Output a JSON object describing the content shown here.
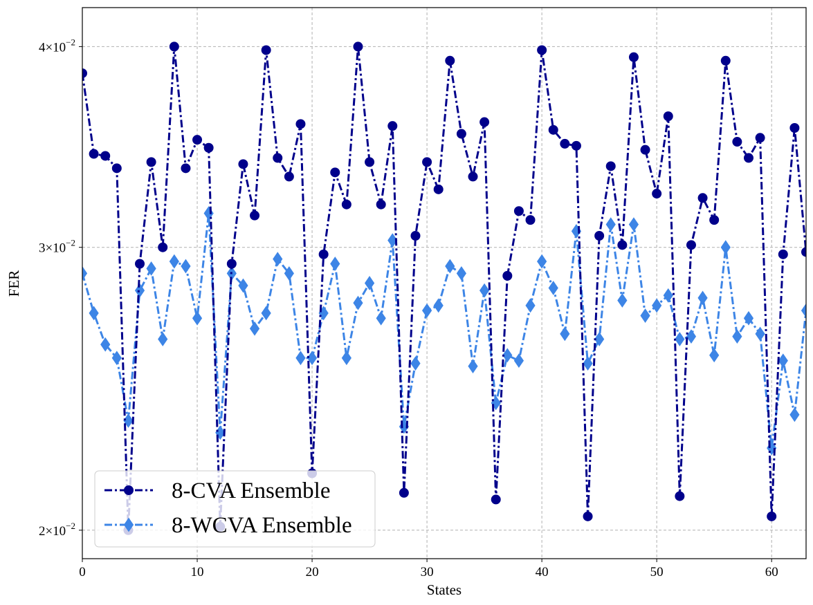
{
  "chart_data": {
    "type": "line",
    "xlabel": "States",
    "ylabel": "FER",
    "xlim": [
      0,
      63
    ],
    "ylim": [
      0.0192,
      0.0423
    ],
    "yscale": "log",
    "grid": true,
    "legend_position": "lower-left",
    "x_ticks": [
      0,
      10,
      20,
      30,
      40,
      50,
      60
    ],
    "x_tick_labels": [
      "0",
      "10",
      "20",
      "30",
      "40",
      "50",
      "60"
    ],
    "y_ticks": [
      0.02,
      0.03,
      0.04
    ],
    "y_tick_labels": [
      {
        "mantissa": "2",
        "times": "×",
        "base": "10",
        "exponent": "−2"
      },
      {
        "mantissa": "3",
        "times": "×",
        "base": "10",
        "exponent": "−2"
      },
      {
        "mantissa": "4",
        "times": "×",
        "base": "10",
        "exponent": "−2"
      }
    ],
    "x": [
      0,
      1,
      2,
      3,
      4,
      5,
      6,
      7,
      8,
      9,
      10,
      11,
      12,
      13,
      14,
      15,
      16,
      17,
      18,
      19,
      20,
      21,
      22,
      23,
      24,
      25,
      26,
      27,
      28,
      29,
      30,
      31,
      32,
      33,
      34,
      35,
      36,
      37,
      38,
      39,
      40,
      41,
      42,
      43,
      44,
      45,
      46,
      47,
      48,
      49,
      50,
      51,
      52,
      53,
      54,
      55,
      56,
      57,
      58,
      59,
      60,
      61,
      62,
      63
    ],
    "series": [
      {
        "name": "8-CVA Ensemble",
        "color": "#00008b",
        "marker": "circle",
        "linestyle": "dashdot",
        "values": [
          0.0385,
          0.0343,
          0.0342,
          0.0336,
          0.02,
          0.0293,
          0.0339,
          0.03,
          0.04,
          0.0336,
          0.035,
          0.0346,
          0.0201,
          0.0293,
          0.0338,
          0.0314,
          0.0398,
          0.0341,
          0.0332,
          0.0358,
          0.0217,
          0.0297,
          0.0334,
          0.0319,
          0.04,
          0.0339,
          0.0319,
          0.0357,
          0.0211,
          0.0305,
          0.0339,
          0.0326,
          0.0392,
          0.0353,
          0.0332,
          0.0359,
          0.0209,
          0.0288,
          0.0316,
          0.0312,
          0.0398,
          0.0355,
          0.0348,
          0.0347,
          0.0204,
          0.0305,
          0.0337,
          0.0301,
          0.0394,
          0.0345,
          0.0324,
          0.0362,
          0.021,
          0.0301,
          0.0322,
          0.0312,
          0.0392,
          0.0349,
          0.0341,
          0.0351,
          0.0204,
          0.0297,
          0.0356,
          0.0298
        ]
      },
      {
        "name": "8-WCVA Ensemble",
        "color": "#3d85e6",
        "marker": "diamond",
        "linestyle": "dashdot",
        "values": [
          0.0289,
          0.0273,
          0.0261,
          0.0256,
          0.0234,
          0.0282,
          0.0291,
          0.0263,
          0.0294,
          0.0292,
          0.0271,
          0.0315,
          0.023,
          0.0289,
          0.0284,
          0.0267,
          0.0273,
          0.0295,
          0.0289,
          0.0256,
          0.0256,
          0.0273,
          0.0293,
          0.0256,
          0.0277,
          0.0285,
          0.0271,
          0.0303,
          0.0232,
          0.0254,
          0.0274,
          0.0276,
          0.0292,
          0.0289,
          0.0253,
          0.0282,
          0.024,
          0.0257,
          0.0255,
          0.0276,
          0.0294,
          0.0283,
          0.0265,
          0.0307,
          0.0254,
          0.0263,
          0.031,
          0.0278,
          0.031,
          0.0272,
          0.0276,
          0.028,
          0.0263,
          0.0264,
          0.0279,
          0.0257,
          0.03,
          0.0264,
          0.0271,
          0.0265,
          0.0225,
          0.0255,
          0.0236,
          0.0274
        ]
      }
    ]
  }
}
